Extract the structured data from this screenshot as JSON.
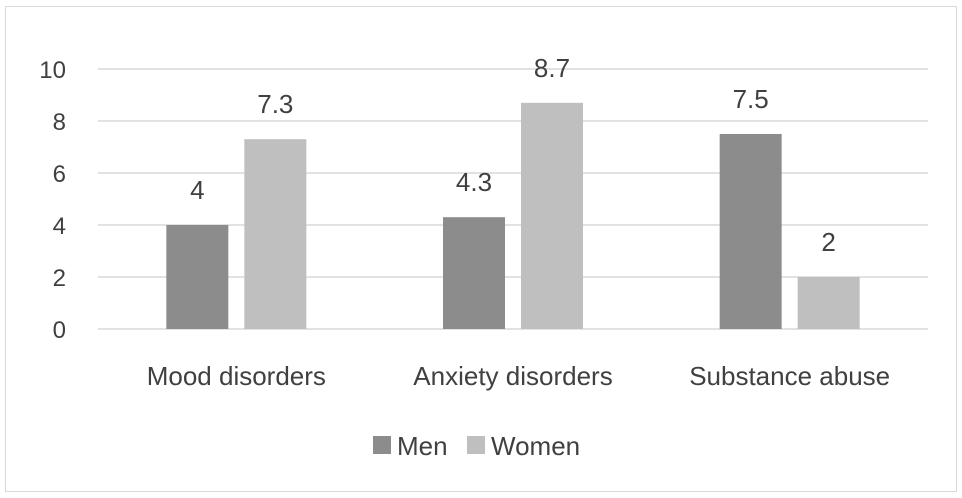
{
  "chart_data": {
    "type": "bar",
    "categories": [
      "Mood disorders",
      "Anxiety disorders",
      "Substance abuse"
    ],
    "series": [
      {
        "name": "Men",
        "values": [
          4,
          4.3,
          7.5
        ],
        "color": "#8c8c8c"
      },
      {
        "name": "Women",
        "values": [
          7.3,
          8.7,
          2
        ],
        "color": "#bfbfbf"
      }
    ],
    "data_labels": [
      [
        "4",
        "4.3",
        "7.5"
      ],
      [
        "7.3",
        "8.7",
        "2"
      ]
    ],
    "yticks": [
      "0",
      "2",
      "4",
      "6",
      "8",
      "10"
    ],
    "ylim": [
      0,
      10
    ],
    "grid": true,
    "legend_position": "bottom",
    "title": "",
    "xlabel": "",
    "ylabel": ""
  }
}
